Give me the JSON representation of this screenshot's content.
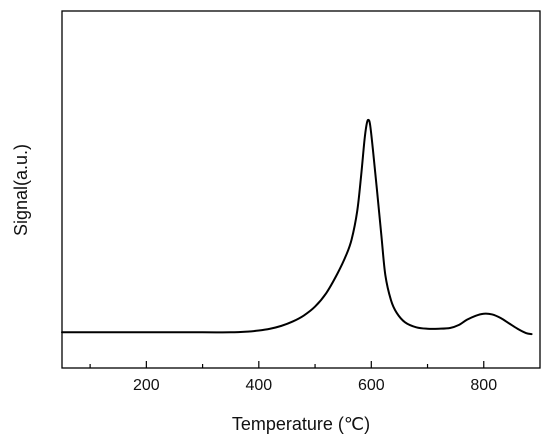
{
  "chart_data": {
    "type": "line",
    "xlabel": "Temperature (℃)",
    "ylabel": "Signal(a.u.)",
    "xlim": [
      50,
      900
    ],
    "ylim": [
      0,
      100
    ],
    "x_major_ticks": [
      200,
      400,
      600,
      800
    ],
    "x_minor_ticks": [
      100,
      300,
      500,
      700
    ],
    "y_ticks_shown": false,
    "grid": false,
    "legend": "none",
    "series": [
      {
        "line_color": "#000000",
        "points": [
          [
            50,
            10.0
          ],
          [
            100,
            10.0
          ],
          [
            200,
            10.0
          ],
          [
            300,
            10.0
          ],
          [
            350,
            10.0
          ],
          [
            380,
            10.2
          ],
          [
            400,
            10.5
          ],
          [
            420,
            11.0
          ],
          [
            440,
            11.8
          ],
          [
            460,
            13.0
          ],
          [
            480,
            14.7
          ],
          [
            500,
            17.2
          ],
          [
            520,
            21.0
          ],
          [
            540,
            26.5
          ],
          [
            555,
            31.5
          ],
          [
            565,
            36.0
          ],
          [
            575,
            44.0
          ],
          [
            582,
            54.0
          ],
          [
            588,
            64.0
          ],
          [
            592,
            68.5
          ],
          [
            595,
            69.5
          ],
          [
            598,
            68.0
          ],
          [
            603,
            61.0
          ],
          [
            610,
            50.0
          ],
          [
            618,
            37.0
          ],
          [
            625,
            26.0
          ],
          [
            635,
            19.0
          ],
          [
            645,
            15.5
          ],
          [
            660,
            12.8
          ],
          [
            680,
            11.4
          ],
          [
            700,
            11.0
          ],
          [
            720,
            11.0
          ],
          [
            740,
            11.2
          ],
          [
            755,
            12.0
          ],
          [
            770,
            13.5
          ],
          [
            785,
            14.6
          ],
          [
            800,
            15.2
          ],
          [
            815,
            15.0
          ],
          [
            830,
            14.0
          ],
          [
            845,
            12.5
          ],
          [
            860,
            11.0
          ],
          [
            875,
            9.8
          ],
          [
            885,
            9.5
          ]
        ]
      }
    ]
  }
}
